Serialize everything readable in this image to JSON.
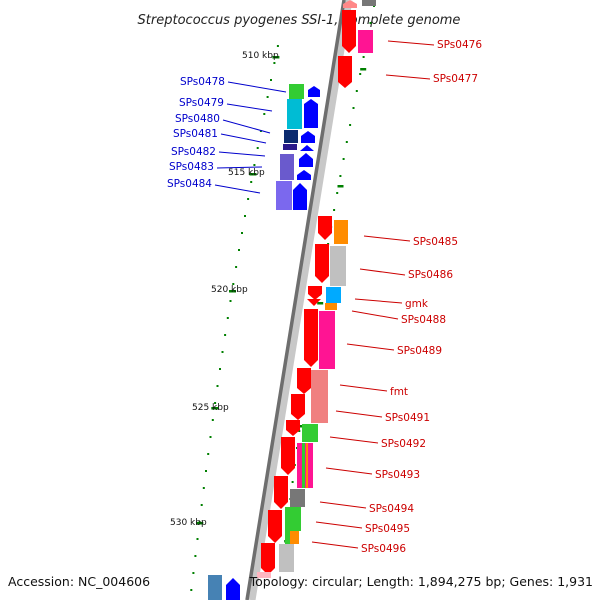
{
  "title": "Streptococcus pyogenes SSI-1, complete genome",
  "accession": "Accession: NC_004606",
  "topology": "Topology: circular; Length: 1,894,275 bp; Genes: 1,931",
  "kbp_labels": [
    "510 kbp",
    "515 kbp",
    "520 kbp",
    "525 kbp",
    "530 kbp"
  ],
  "colors": {
    "backbone": "#808080",
    "forward_track": "#ff0000",
    "reverse_track": "#0000ff",
    "label_forward": "#cc0000",
    "label_reverse": "#0000cc",
    "tick": "#008000"
  },
  "genes_reverse": [
    {
      "name": "SPs0478",
      "cog_color": "#33cc33"
    },
    {
      "name": "SPs0479",
      "cog_color": "#00bcd4"
    },
    {
      "name": "SPs0480",
      "cog_color": "#0b2a6e"
    },
    {
      "name": "SPs0481",
      "cog_color": "#2a1a8a"
    },
    {
      "name": "SPs0482",
      "cog_color": "#ffffff"
    },
    {
      "name": "SPs0483",
      "cog_color": "#6a5acd"
    },
    {
      "name": "SPs0484",
      "cog_color": "#7b68ee"
    }
  ],
  "genes_forward": [
    {
      "name": "SPs0476",
      "cog_color": "#ff1493"
    },
    {
      "name": "SPs0477",
      "cog_color": "#ffffff"
    },
    {
      "name": "SPs0485",
      "cog_color": "#ff8c00"
    },
    {
      "name": "SPs0486",
      "cog_color": "#c0c0c0"
    },
    {
      "name": "gmk",
      "cog_color": "#00aaff"
    },
    {
      "name": "SPs0488",
      "cog_color": "#ff8c00"
    },
    {
      "name": "SPs0489",
      "cog_color": "#ff1493"
    },
    {
      "name": "fmt",
      "cog_color": "#f08080"
    },
    {
      "name": "SPs0491",
      "cog_color": "#f08080"
    },
    {
      "name": "SPs0492",
      "cog_color": "#33cc33"
    },
    {
      "name": "SPs0493",
      "cog_color": "#ff1493"
    },
    {
      "name": "SPs0494",
      "cog_color": "#777777"
    },
    {
      "name": "SPs0495",
      "cog_color": "#33cc33"
    },
    {
      "name": "SPs0496",
      "cog_color": "#c0c0c0"
    }
  ]
}
